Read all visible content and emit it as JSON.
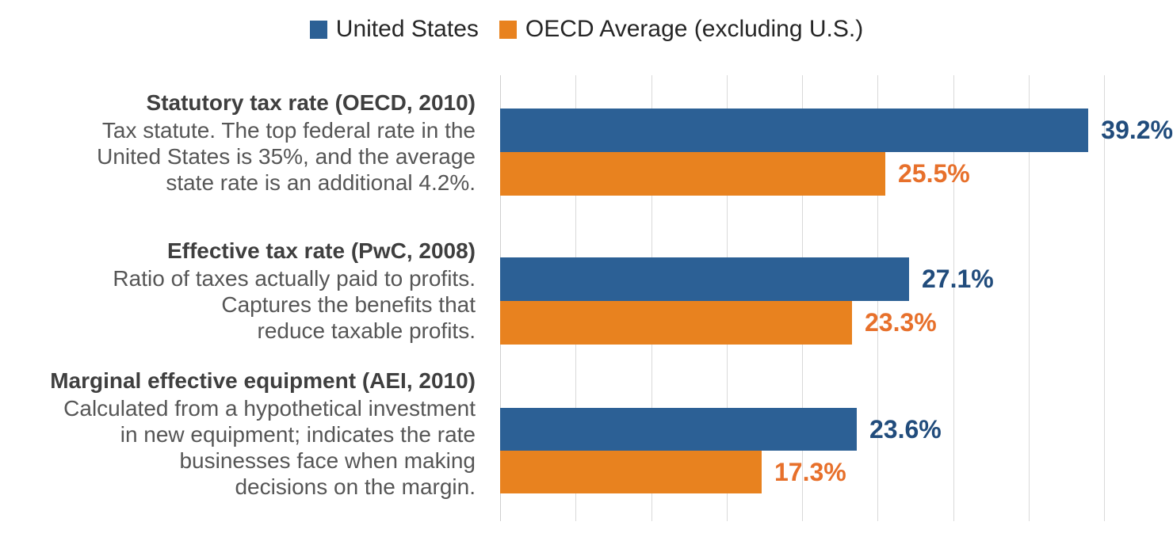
{
  "legend": {
    "items": [
      {
        "label": "United States",
        "color": "#2c6095"
      },
      {
        "label": "OECD Average (excluding U.S.)",
        "color": "#e8821f"
      }
    ]
  },
  "chart_data": {
    "type": "bar",
    "orientation": "horizontal",
    "unit": "percent",
    "title": "",
    "legend_position": "top-center",
    "grid": "vertical-only",
    "axis": {
      "min": 0,
      "max": 44.5,
      "gridline_interval": 5,
      "gridlines": [
        0,
        5,
        10,
        15,
        20,
        25,
        30,
        35,
        40
      ],
      "tick_labels_visible": false
    },
    "categories": [
      {
        "title": "Statutory tax rate (OECD, 2010)",
        "description_lines": [
          "Tax statute. The top federal rate in the",
          "United States is 35%, and the average",
          "state rate is an additional 4.2%."
        ]
      },
      {
        "title": "Effective tax rate (PwC, 2008)",
        "description_lines": [
          "Ratio of taxes actually paid to profits.",
          "Captures the benefits that",
          "reduce taxable profits."
        ]
      },
      {
        "title": "Marginal effective equipment (AEI, 2010)",
        "description_lines": [
          "Calculated from a hypothetical investment",
          "in new equipment; indicates the rate",
          "businesses face when making",
          "decisions on the margin."
        ]
      }
    ],
    "series": [
      {
        "name": "United States",
        "color": "#2c6095",
        "label_color": "#214c7c",
        "values": [
          39.2,
          27.1,
          23.6
        ],
        "value_labels": [
          "39.2%",
          "27.1%",
          "23.6%"
        ]
      },
      {
        "name": "OECD Average (excluding U.S.)",
        "color": "#e8821f",
        "label_color": "#e7702b",
        "values": [
          25.5,
          23.3,
          17.3
        ],
        "value_labels": [
          "25.5%",
          "23.3%",
          "17.3%"
        ]
      }
    ]
  }
}
